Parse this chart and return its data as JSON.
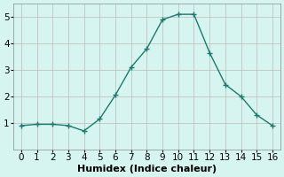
{
  "x": [
    0,
    1,
    2,
    3,
    4,
    5,
    6,
    7,
    8,
    9,
    10,
    11,
    12,
    13,
    14,
    15,
    16
  ],
  "y": [
    0.9,
    0.95,
    0.95,
    0.9,
    0.7,
    1.15,
    2.05,
    3.1,
    3.8,
    4.9,
    5.1,
    5.1,
    3.65,
    2.45,
    2.0,
    1.3,
    0.9
  ],
  "line_color": "#1a7a6e",
  "marker": "+",
  "marker_size": 5,
  "marker_color": "#1a7a6e",
  "bg_color": "#d6f5f0",
  "grid_color": "#c0b8b8",
  "xlabel": "Humidex (Indice chaleur)",
  "xlim": [
    -0.5,
    16.5
  ],
  "ylim": [
    0,
    5.5
  ],
  "xticks": [
    0,
    1,
    2,
    3,
    4,
    5,
    6,
    7,
    8,
    9,
    10,
    11,
    12,
    13,
    14,
    15,
    16
  ],
  "yticks": [
    1,
    2,
    3,
    4,
    5
  ],
  "xlabel_fontsize": 8,
  "tick_fontsize": 7.5
}
